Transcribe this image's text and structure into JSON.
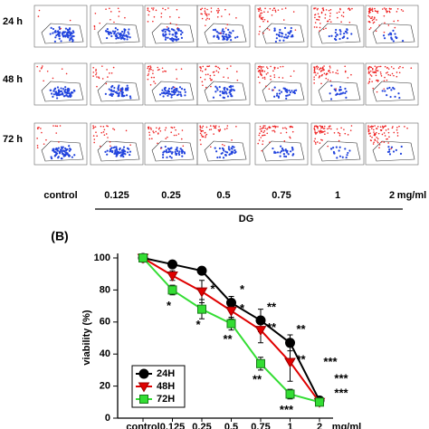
{
  "flow_panel": {
    "rows": [
      "24 h",
      "48 h",
      "72 h"
    ],
    "columns": [
      "control",
      "0.125",
      "0.25",
      "0.5",
      "0.75",
      "1",
      "2"
    ],
    "unit": "mg/ml",
    "treatment": "DG"
  },
  "chart_data": {
    "type": "line",
    "panel_label": "(B)",
    "y_label": "viability (%)",
    "categories": [
      "control",
      "0.125",
      "0.25",
      "0.5",
      "0.75",
      "1",
      "2"
    ],
    "x_unit": "mg/ml",
    "ylim": [
      0,
      100
    ],
    "yticks": [
      0,
      20,
      40,
      60,
      80,
      100
    ],
    "legend": "lower left",
    "series": [
      {
        "name": "24H",
        "color": "#000000",
        "marker": "circle",
        "values": [
          100,
          96,
          92,
          72,
          61,
          47,
          11
        ],
        "errors": [
          0,
          2,
          1,
          4,
          7,
          5,
          2
        ],
        "significance": [
          null,
          null,
          null,
          "*",
          "**",
          "**",
          "***"
        ]
      },
      {
        "name": "48H",
        "color": "#e00000",
        "marker": "triangle-down",
        "values": [
          100,
          89,
          79,
          67,
          55,
          35,
          10
        ],
        "errors": [
          0,
          3,
          7,
          5,
          8,
          12,
          2
        ],
        "significance": [
          null,
          null,
          "*",
          "*",
          "**",
          "**",
          "***"
        ]
      },
      {
        "name": "72H",
        "color": "#33dd33",
        "marker": "square",
        "values": [
          100,
          80,
          68,
          59,
          34,
          15,
          10
        ],
        "errors": [
          0,
          3,
          6,
          4,
          4,
          3,
          2
        ],
        "significance": [
          null,
          "*",
          "*",
          "**",
          "**",
          "***",
          "***"
        ]
      }
    ]
  }
}
